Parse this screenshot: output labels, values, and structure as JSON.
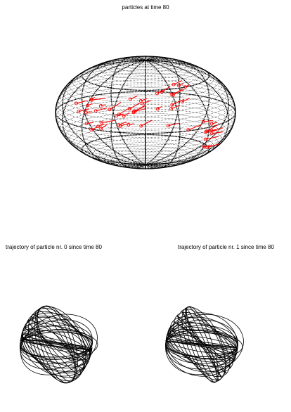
{
  "chart_data": [
    {
      "type": "scatter",
      "title": "particles at time 80",
      "projection": "sphere, oblique perspective view (wireframe)",
      "sphere": {
        "dense_latitude_rings": 40,
        "bold_meridians": 8,
        "bold_latitudes": 3
      },
      "particle_color": "#ff0000",
      "clusters": [
        {
          "region": "left / centre band",
          "approx_count": 30
        },
        {
          "region": "upper right",
          "approx_count": 10
        },
        {
          "region": "lower right",
          "approx_count": 10
        }
      ]
    },
    {
      "type": "line",
      "title": "trajectory of particle nr. 0 since time 80",
      "line_color": "#000000",
      "loops": 30
    },
    {
      "type": "line",
      "title": "trajectory of particle nr. 1 since time 80",
      "line_color": "#000000",
      "loops": 30
    }
  ]
}
